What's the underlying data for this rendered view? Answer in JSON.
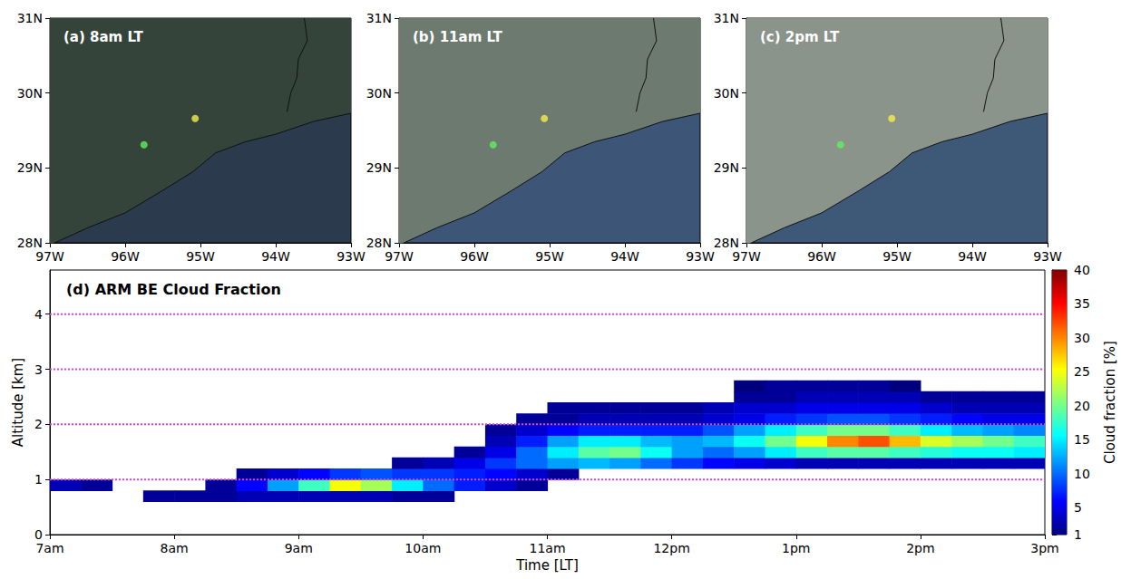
{
  "chart_data": [
    {
      "type": "map",
      "title": "(a) 8am LT",
      "xlim": [
        -97,
        -93
      ],
      "xticks": [
        {
          "value": -97,
          "label": "97W"
        },
        {
          "value": -96,
          "label": "96W"
        },
        {
          "value": -95,
          "label": "95W"
        },
        {
          "value": -94,
          "label": "94W"
        },
        {
          "value": -93,
          "label": "93W"
        }
      ],
      "ylim": [
        28,
        31
      ],
      "yticks": [
        {
          "value": 28,
          "label": "28N"
        },
        {
          "value": 29,
          "label": "29N"
        },
        {
          "value": 30,
          "label": "30N"
        },
        {
          "value": 31,
          "label": "31N"
        }
      ],
      "colors": [
        "#34443a",
        "#2b3a4d"
      ],
      "coastline": [
        [
          -97,
          27.97
        ],
        [
          -96.5,
          28.2
        ],
        [
          -96,
          28.4
        ],
        [
          -95.5,
          28.7
        ],
        [
          -95.1,
          28.95
        ],
        [
          -94.8,
          29.2
        ],
        [
          -94.4,
          29.35
        ],
        [
          -94,
          29.45
        ],
        [
          -93.5,
          29.62
        ],
        [
          -93,
          29.73
        ]
      ],
      "border": [
        [
          -93.62,
          31
        ],
        [
          -93.58,
          30.7
        ],
        [
          -93.7,
          30.45
        ],
        [
          -93.72,
          30.2
        ],
        [
          -93.8,
          30.0
        ],
        [
          -93.85,
          29.75
        ]
      ],
      "points": [
        {
          "x": -95.75,
          "y": 29.31,
          "color": "#5ef05e"
        },
        {
          "x": -95.07,
          "y": 29.66,
          "color": "#f5ee4a"
        }
      ]
    },
    {
      "type": "map",
      "title": "(b) 11am LT",
      "xlim": [
        -97,
        -93
      ],
      "xticks": [
        {
          "value": -97,
          "label": "97W"
        },
        {
          "value": -96,
          "label": "96W"
        },
        {
          "value": -95,
          "label": "95W"
        },
        {
          "value": -94,
          "label": "94W"
        },
        {
          "value": -93,
          "label": "93W"
        }
      ],
      "ylim": [
        28,
        31
      ],
      "yticks": [
        {
          "value": 28,
          "label": "28N"
        },
        {
          "value": 29,
          "label": "29N"
        },
        {
          "value": 30,
          "label": "30N"
        },
        {
          "value": 31,
          "label": "31N"
        }
      ],
      "colors": [
        "#6d7a70",
        "#3d5677"
      ],
      "coastline": [
        [
          -97,
          27.97
        ],
        [
          -96.5,
          28.2
        ],
        [
          -96,
          28.4
        ],
        [
          -95.5,
          28.7
        ],
        [
          -95.1,
          28.95
        ],
        [
          -94.8,
          29.2
        ],
        [
          -94.4,
          29.35
        ],
        [
          -94,
          29.45
        ],
        [
          -93.5,
          29.62
        ],
        [
          -93,
          29.73
        ]
      ],
      "border": [
        [
          -93.62,
          31
        ],
        [
          -93.58,
          30.7
        ],
        [
          -93.7,
          30.45
        ],
        [
          -93.72,
          30.2
        ],
        [
          -93.8,
          30.0
        ],
        [
          -93.85,
          29.75
        ]
      ],
      "points": [
        {
          "x": -95.75,
          "y": 29.31,
          "color": "#5ef05e"
        },
        {
          "x": -95.07,
          "y": 29.66,
          "color": "#f5ee4a"
        }
      ]
    },
    {
      "type": "map",
      "title": "(c) 2pm LT",
      "xlim": [
        -97,
        -93
      ],
      "xticks": [
        {
          "value": -97,
          "label": "97W"
        },
        {
          "value": -96,
          "label": "96W"
        },
        {
          "value": -95,
          "label": "95W"
        },
        {
          "value": -94,
          "label": "94W"
        },
        {
          "value": -93,
          "label": "93W"
        }
      ],
      "ylim": [
        28,
        31
      ],
      "yticks": [
        {
          "value": 28,
          "label": "28N"
        },
        {
          "value": 29,
          "label": "29N"
        },
        {
          "value": 30,
          "label": "30N"
        },
        {
          "value": 31,
          "label": "31N"
        }
      ],
      "colors": [
        "#8a948b",
        "#3e5878"
      ],
      "coastline": [
        [
          -97,
          27.97
        ],
        [
          -96.5,
          28.2
        ],
        [
          -96,
          28.4
        ],
        [
          -95.5,
          28.7
        ],
        [
          -95.1,
          28.95
        ],
        [
          -94.8,
          29.2
        ],
        [
          -94.4,
          29.35
        ],
        [
          -94,
          29.45
        ],
        [
          -93.5,
          29.62
        ],
        [
          -93,
          29.73
        ]
      ],
      "border": [
        [
          -93.62,
          31
        ],
        [
          -93.58,
          30.7
        ],
        [
          -93.7,
          30.45
        ],
        [
          -93.72,
          30.2
        ],
        [
          -93.8,
          30.0
        ],
        [
          -93.85,
          29.75
        ]
      ],
      "points": [
        {
          "x": -95.75,
          "y": 29.31,
          "color": "#5ef05e"
        },
        {
          "x": -95.07,
          "y": 29.66,
          "color": "#f5ee4a"
        }
      ]
    },
    {
      "type": "heatmap",
      "title": "(d) ARM BE Cloud Fraction",
      "x_label": "Time [LT]",
      "y_label": "Altitude [km]",
      "xlim": [
        7,
        15
      ],
      "xticks": [
        {
          "value": 7,
          "label": "7am"
        },
        {
          "value": 8,
          "label": "8am"
        },
        {
          "value": 9,
          "label": "9am"
        },
        {
          "value": 10,
          "label": "10am"
        },
        {
          "value": 11,
          "label": "11am"
        },
        {
          "value": 12,
          "label": "12pm"
        },
        {
          "value": 13,
          "label": "1pm"
        },
        {
          "value": 14,
          "label": "2pm"
        },
        {
          "value": 15,
          "label": "3pm"
        }
      ],
      "ylim": [
        0,
        4.8
      ],
      "yticks": [
        0,
        1,
        2,
        3,
        4
      ],
      "grid": true,
      "times": [
        7.125,
        7.375,
        7.625,
        7.875,
        8.125,
        8.375,
        8.625,
        8.875,
        9.125,
        9.375,
        9.625,
        9.875,
        10.125,
        10.375,
        10.625,
        10.875,
        11.125,
        11.375,
        11.625,
        11.875,
        12.125,
        12.375,
        12.625,
        12.875,
        13.125,
        13.375,
        13.625,
        13.875,
        14.125,
        14.375,
        14.625,
        14.875
      ],
      "altitudes": [
        0.7,
        0.9,
        1.1,
        1.3,
        1.5,
        1.7,
        1.9,
        2.1,
        2.3,
        2.5,
        2.7
      ],
      "cloud_fraction": [
        [
          null,
          null,
          null,
          2,
          2,
          2,
          3,
          3,
          3,
          3,
          3,
          2,
          2,
          null,
          null,
          null,
          null,
          null,
          null,
          null,
          null,
          null,
          null,
          null,
          null,
          null,
          null,
          null,
          null,
          null,
          null,
          null
        ],
        [
          3,
          2,
          null,
          null,
          null,
          2,
          6,
          12,
          18,
          25,
          22,
          15,
          10,
          7,
          4,
          2,
          null,
          null,
          null,
          null,
          null,
          null,
          null,
          null,
          null,
          null,
          null,
          null,
          null,
          null,
          null,
          null
        ],
        [
          null,
          null,
          null,
          null,
          null,
          null,
          2,
          4,
          6,
          8,
          9,
          8,
          8,
          7,
          6,
          4,
          2,
          null,
          null,
          null,
          null,
          null,
          null,
          null,
          null,
          null,
          null,
          null,
          null,
          null,
          null,
          null
        ],
        [
          null,
          null,
          null,
          null,
          null,
          null,
          null,
          null,
          null,
          null,
          null,
          2,
          3,
          5,
          8,
          10,
          12,
          13,
          12,
          10,
          8,
          6,
          5,
          4,
          3,
          3,
          3,
          3,
          3,
          3,
          3,
          3
        ],
        [
          null,
          null,
          null,
          null,
          null,
          null,
          null,
          null,
          null,
          null,
          null,
          null,
          null,
          2,
          5,
          10,
          15,
          19,
          20,
          16,
          12,
          10,
          12,
          15,
          18,
          19,
          19,
          18,
          17,
          16,
          16,
          15
        ],
        [
          null,
          null,
          null,
          null,
          null,
          null,
          null,
          null,
          null,
          null,
          null,
          null,
          null,
          null,
          3,
          7,
          12,
          15,
          15,
          13,
          12,
          13,
          16,
          20,
          25,
          30,
          32,
          28,
          24,
          22,
          20,
          18
        ],
        [
          null,
          null,
          null,
          null,
          null,
          null,
          null,
          null,
          null,
          null,
          null,
          null,
          null,
          null,
          2,
          4,
          6,
          7,
          7,
          7,
          7,
          9,
          12,
          15,
          18,
          20,
          20,
          18,
          15,
          13,
          12,
          11
        ],
        [
          null,
          null,
          null,
          null,
          null,
          null,
          null,
          null,
          null,
          null,
          null,
          null,
          null,
          null,
          null,
          2,
          2,
          3,
          3,
          3,
          3,
          4,
          5,
          7,
          8,
          9,
          9,
          8,
          7,
          6,
          5,
          5
        ],
        [
          null,
          null,
          null,
          null,
          null,
          null,
          null,
          null,
          null,
          null,
          null,
          null,
          null,
          null,
          null,
          null,
          2,
          2,
          2,
          2,
          2,
          3,
          4,
          4,
          5,
          5,
          5,
          5,
          4,
          3,
          3,
          3
        ],
        [
          null,
          null,
          null,
          null,
          null,
          null,
          null,
          null,
          null,
          null,
          null,
          null,
          null,
          null,
          null,
          null,
          null,
          null,
          null,
          null,
          null,
          null,
          2,
          2,
          3,
          3,
          3,
          3,
          2,
          2,
          2,
          2
        ],
        [
          null,
          null,
          null,
          null,
          null,
          null,
          null,
          null,
          null,
          null,
          null,
          null,
          null,
          null,
          null,
          null,
          null,
          null,
          null,
          null,
          null,
          null,
          1,
          2,
          2,
          2,
          2,
          1,
          null,
          null,
          null,
          null
        ]
      ],
      "colorbar_label": "Cloud fraction [%]",
      "colorbar_lim": [
        1,
        40
      ],
      "colorbar_ticks": [
        1,
        5,
        10,
        15,
        20,
        25,
        30,
        35,
        40
      ]
    }
  ]
}
